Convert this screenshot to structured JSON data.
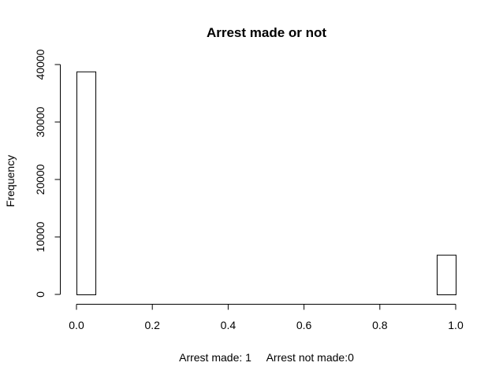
{
  "chart_data": {
    "type": "bar",
    "title": "Arrest made or not",
    "xlabel": "Arrest made: 1     Arrest not made:0",
    "ylabel": "Frequency",
    "xlim": [
      0,
      1
    ],
    "ylim": [
      0,
      40000
    ],
    "x_ticks": [
      "0.0",
      "0.2",
      "0.4",
      "0.6",
      "0.8",
      "1.0"
    ],
    "y_ticks": [
      "0",
      "10000",
      "20000",
      "30000",
      "40000"
    ],
    "grid": false,
    "bins": [
      {
        "x0": 0.0,
        "x1": 0.05,
        "value": 38800
      },
      {
        "x0": 0.95,
        "x1": 1.0,
        "value": 6900
      }
    ]
  }
}
